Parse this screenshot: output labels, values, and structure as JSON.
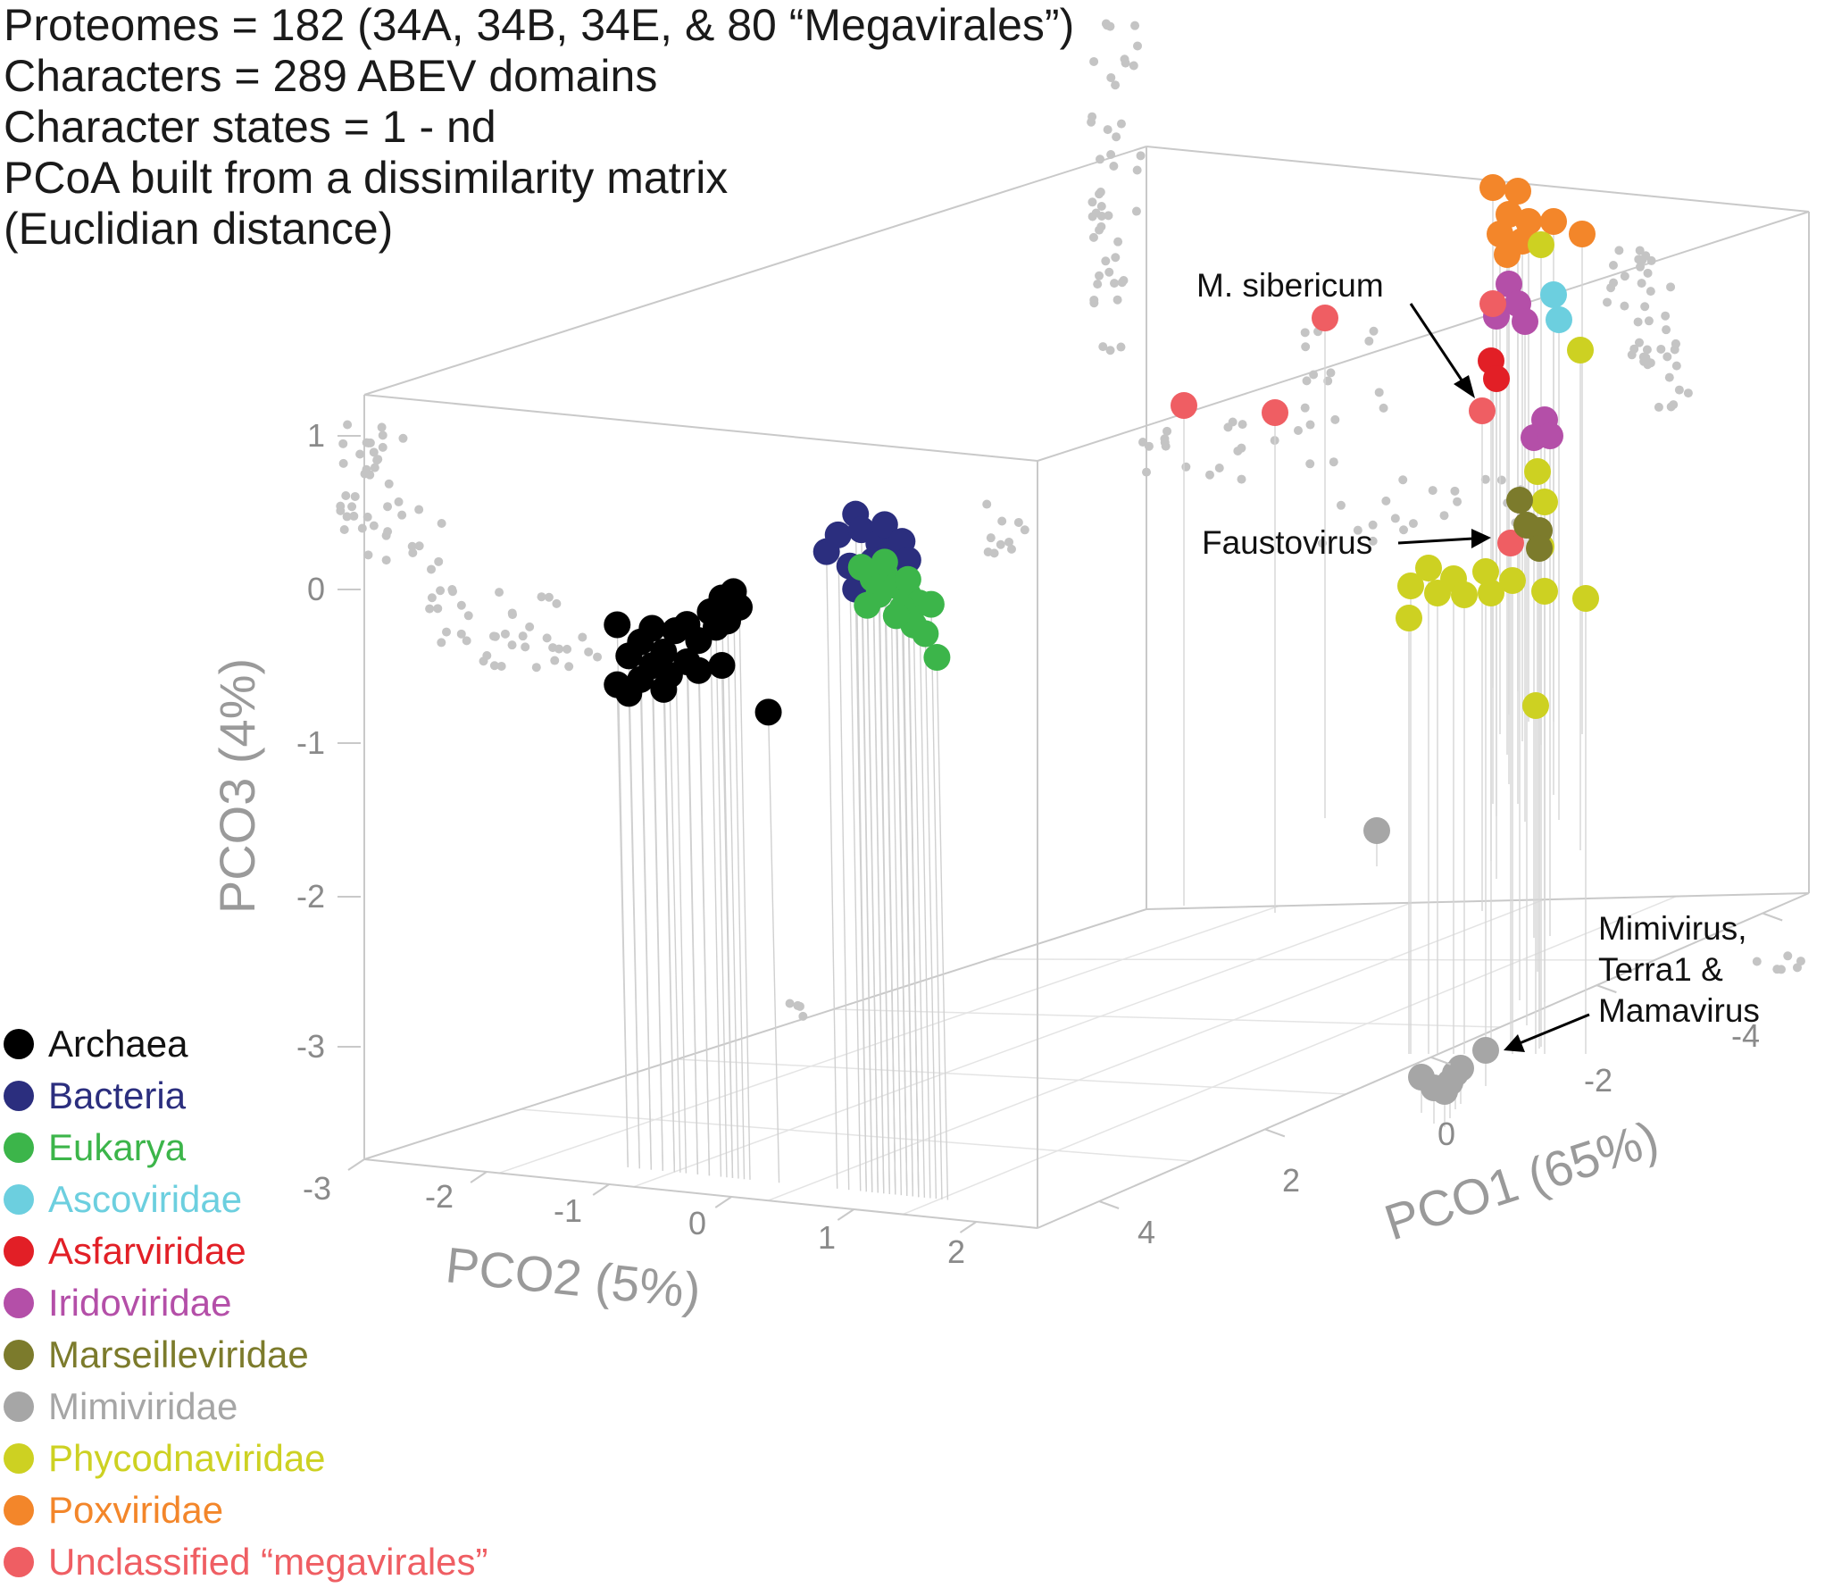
{
  "header": {
    "lines": [
      "Proteomes = 182 (34A, 34B, 34E, & 80 “Megavirales”)",
      "Characters = 289 ABEV domains",
      "Character states = 1 - nd",
      "PCoA built from a dissimilarity matrix",
      "(Euclidian distance)"
    ]
  },
  "chart_data": {
    "type": "scatter",
    "projection": "3d",
    "axes": {
      "x": {
        "title": "PCO2 (5%)",
        "range": [
          -3,
          2.5
        ],
        "ticks": [
          "-3",
          "-2",
          "-1",
          "0",
          "1",
          "2"
        ]
      },
      "y": {
        "title": "PCO1 (65%)",
        "range": [
          5,
          -5
        ],
        "ticks": [
          "4",
          "2",
          "0",
          "-2",
          "-4"
        ]
      },
      "z": {
        "title": "PCO3 (4%)",
        "range": [
          -3.8,
          1.3
        ],
        "ticks": [
          "1",
          "0",
          "-1",
          "-2",
          "-3"
        ]
      }
    },
    "series": [
      {
        "name": "Archaea",
        "color": "#000000",
        "points": [
          [
            -1.9,
            -0.3
          ],
          [
            -1.8,
            -0.5
          ],
          [
            -1.7,
            -0.4
          ],
          [
            -1.6,
            -0.55
          ],
          [
            -1.5,
            -0.45
          ],
          [
            -1.4,
            -0.3
          ],
          [
            -1.3,
            -0.25
          ],
          [
            -1.2,
            -0.35
          ],
          [
            -1.1,
            -0.15
          ],
          [
            -1.0,
            -0.05
          ],
          [
            -0.9,
            0.0
          ],
          [
            -0.85,
            -0.1
          ],
          [
            -1.5,
            -0.7
          ],
          [
            -1.7,
            -0.65
          ],
          [
            -1.9,
            -0.7
          ],
          [
            -1.8,
            -0.75
          ],
          [
            -1.2,
            -0.55
          ],
          [
            -1.0,
            -0.5
          ],
          [
            -0.6,
            -0.78
          ],
          [
            -1.3,
            -0.5
          ],
          [
            -1.6,
            -0.3
          ],
          [
            -1.45,
            -0.6
          ],
          [
            -1.05,
            -0.25
          ],
          [
            -0.95,
            -0.2
          ]
        ]
      },
      {
        "name": "Bacteria",
        "color": "#2b2e7e",
        "points": [
          [
            -0.1,
            0.33
          ],
          [
            0.0,
            0.45
          ],
          [
            0.15,
            0.6
          ],
          [
            0.2,
            0.5
          ],
          [
            0.35,
            0.42
          ],
          [
            0.4,
            0.55
          ],
          [
            0.3,
            0.3
          ],
          [
            0.45,
            0.38
          ],
          [
            0.5,
            0.25
          ],
          [
            0.1,
            0.25
          ],
          [
            0.25,
            0.15
          ],
          [
            0.55,
            0.45
          ],
          [
            0.6,
            0.33
          ],
          [
            0.15,
            0.1
          ]
        ]
      },
      {
        "name": "Eukarya",
        "color": "#3cb54a",
        "points": [
          [
            0.2,
            0.25
          ],
          [
            0.3,
            0.18
          ],
          [
            0.4,
            0.22
          ],
          [
            0.5,
            0.15
          ],
          [
            0.6,
            0.1
          ],
          [
            0.7,
            0.05
          ],
          [
            0.55,
            0.0
          ],
          [
            0.65,
            -0.1
          ],
          [
            0.75,
            -0.15
          ],
          [
            0.85,
            -0.3
          ],
          [
            0.4,
            0.3
          ],
          [
            0.35,
            0.08
          ],
          [
            0.5,
            -0.05
          ],
          [
            0.25,
            0.0
          ],
          [
            0.8,
            0.05
          ],
          [
            0.6,
            0.2
          ]
        ]
      }
    ],
    "legend": [
      {
        "label": "Archaea",
        "color": "#000000"
      },
      {
        "label": "Bacteria",
        "color": "#2b2e7e"
      },
      {
        "label": "Eukarya",
        "color": "#3cb54a"
      },
      {
        "label": "Ascoviridae",
        "color": "#6ccfdf"
      },
      {
        "label": "Asfarviridae",
        "color": "#e21f26"
      },
      {
        "label": "Iridoviridae",
        "color": "#b44fa8"
      },
      {
        "label": "Marseilleviridae",
        "color": "#7c7b2c"
      },
      {
        "label": "Mimiviridae",
        "color": "#a6a6a6"
      },
      {
        "label": "Phycodnaviridae",
        "color": "#cdd122"
      },
      {
        "label": "Poxviridae",
        "color": "#f3862a"
      },
      {
        "label": "Unclassified “megavirales”",
        "color": "#ef5e63"
      }
    ],
    "annotations": [
      {
        "label": "M. sibericum"
      },
      {
        "label": "Faustovirus"
      },
      {
        "label": "Mimivirus,",
        "line2": "Terra1 &",
        "line3": "Mamavirus"
      }
    ]
  }
}
